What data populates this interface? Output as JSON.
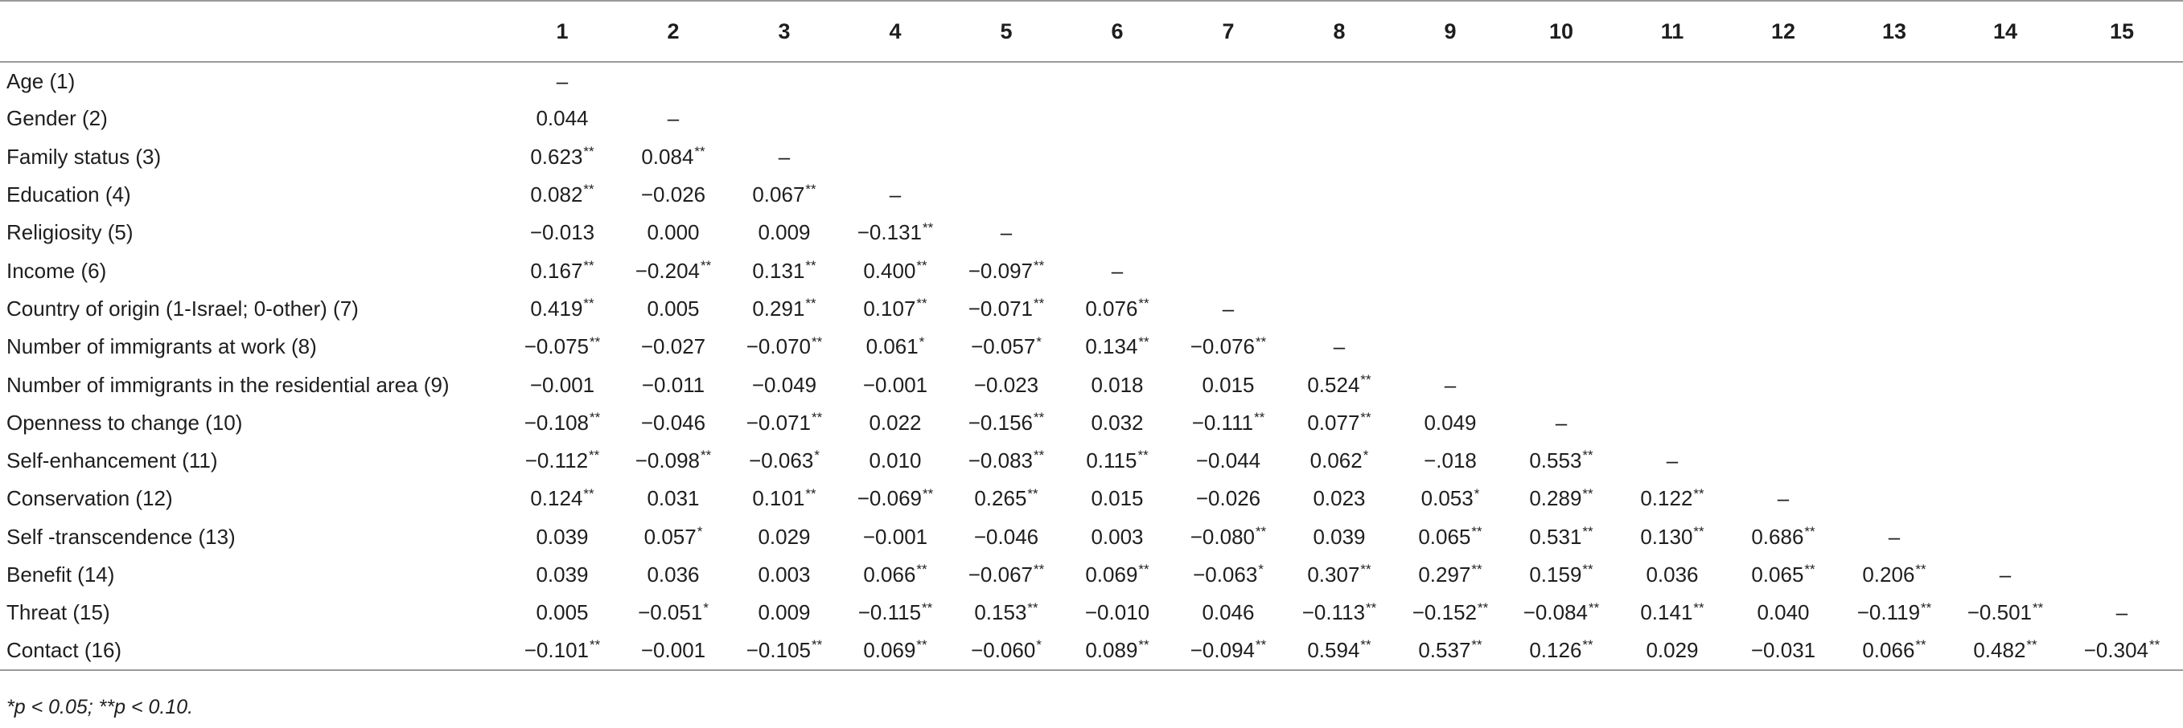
{
  "table": {
    "headers": [
      "",
      "1",
      "2",
      "3",
      "4",
      "5",
      "6",
      "7",
      "8",
      "9",
      "10",
      "11",
      "12",
      "13",
      "14",
      "15"
    ],
    "rows": [
      {
        "label": "Age (1)",
        "cells": [
          "–"
        ]
      },
      {
        "label": "Gender (2)",
        "cells": [
          "0.044",
          "–"
        ]
      },
      {
        "label": "Family status (3)",
        "cells": [
          "0.623**",
          "0.084**",
          "–"
        ]
      },
      {
        "label": "Education (4)",
        "cells": [
          "0.082**",
          "−0.026",
          "0.067**",
          "–"
        ]
      },
      {
        "label": "Religiosity (5)",
        "cells": [
          "−0.013",
          "0.000",
          "0.009",
          "−0.131**",
          "–"
        ]
      },
      {
        "label": "Income (6)",
        "cells": [
          "0.167**",
          "−0.204**",
          "0.131**",
          "0.400**",
          "−0.097**",
          "–"
        ]
      },
      {
        "label": "Country of origin (1-Israel; 0-other) (7)",
        "cells": [
          "0.419**",
          "0.005",
          "0.291**",
          "0.107**",
          "−0.071**",
          "0.076**",
          "–"
        ]
      },
      {
        "label": "Number of immigrants at work (8)",
        "cells": [
          "−0.075**",
          "−0.027",
          "−0.070**",
          "0.061*",
          "−0.057*",
          "0.134**",
          "−0.076**",
          "–"
        ]
      },
      {
        "label": "Number of immigrants in the residential area (9)",
        "cells": [
          "−0.001",
          "−0.011",
          "−0.049",
          "−0.001",
          "−0.023",
          "0.018",
          "0.015",
          "0.524**",
          "–"
        ]
      },
      {
        "label": "Openness to change (10)",
        "cells": [
          "−0.108**",
          "−0.046",
          "−0.071**",
          "0.022",
          "−0.156**",
          "0.032",
          "−0.111**",
          "0.077**",
          "0.049",
          "–"
        ]
      },
      {
        "label": "Self-enhancement (11)",
        "cells": [
          "−0.112**",
          "−0.098**",
          "−0.063*",
          "0.010",
          "−0.083**",
          "0.115**",
          "−0.044",
          "0.062*",
          "−.018",
          "0.553**",
          "–"
        ]
      },
      {
        "label": "Conservation (12)",
        "cells": [
          "0.124**",
          "0.031",
          "0.101**",
          "−0.069**",
          "0.265**",
          "0.015",
          "−0.026",
          "0.023",
          "0.053*",
          "0.289**",
          "0.122**",
          "–"
        ]
      },
      {
        "label": "Self -transcendence (13)",
        "cells": [
          "0.039",
          "0.057*",
          "0.029",
          "−0.001",
          "−0.046",
          "0.003",
          "−0.080**",
          "0.039",
          "0.065**",
          "0.531**",
          "0.130**",
          "0.686**",
          "–"
        ]
      },
      {
        "label": "Benefit (14)",
        "cells": [
          "0.039",
          "0.036",
          "0.003",
          "0.066**",
          "−0.067**",
          "0.069**",
          "−0.063*",
          "0.307**",
          "0.297**",
          "0.159**",
          "0.036",
          "0.065**",
          "0.206**",
          "–"
        ]
      },
      {
        "label": "Threat (15)",
        "cells": [
          "0.005",
          "−0.051*",
          "0.009",
          "−0.115**",
          "0.153**",
          "−0.010",
          "0.046",
          "−0.113**",
          "−0.152**",
          "−0.084**",
          "0.141**",
          "0.040",
          "−0.119**",
          "−0.501**",
          "–"
        ]
      },
      {
        "label": "Contact (16)",
        "cells": [
          "−0.101**",
          "−0.001",
          "−0.105**",
          "0.069**",
          "−0.060*",
          "0.089**",
          "−0.094**",
          "0.594**",
          "0.537**",
          "0.126**",
          "0.029",
          "−0.031",
          "0.066**",
          "0.482**",
          "−0.304**"
        ]
      }
    ]
  },
  "footnote": "*p < 0.05; **p < 0.10."
}
